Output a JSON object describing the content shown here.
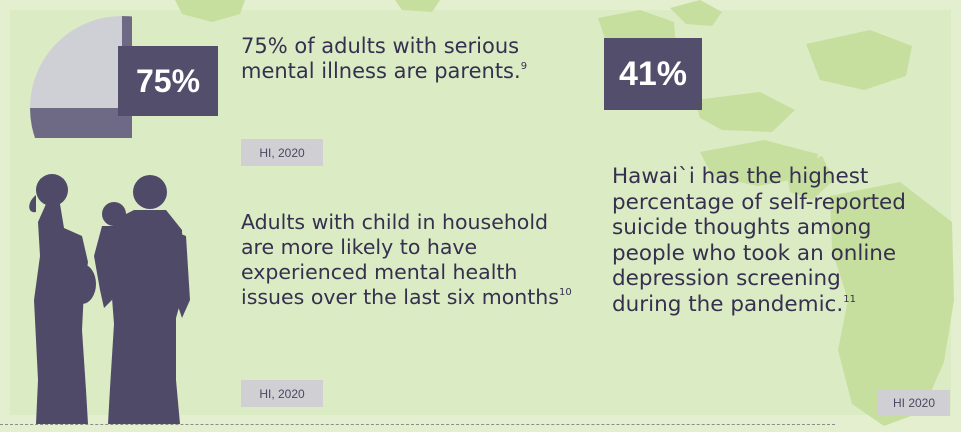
{
  "stats": {
    "parents": {
      "value": "75%",
      "fraction": 0.75,
      "text": "75% of adults with serious mental illness are parents.",
      "footnote": "9",
      "source": "HI, 2020"
    },
    "household": {
      "text": "Adults with child in household are more likely to have experienced mental health issues over the last six months",
      "footnote": "10",
      "source": "HI, 2020"
    },
    "suicide": {
      "value": "41%",
      "text": "Hawai`i has the highest percentage of self-reported suicide thoughts among people who took an online depression screening during the pandemic.",
      "footnote": "11",
      "source": "HI 2020"
    }
  },
  "colors": {
    "background": "#dbebc4",
    "island": "#c6df9f",
    "accent": "#534e6c",
    "silhouette": "#4f4a68",
    "pie_light": "#cfcfd6",
    "text": "#36304f"
  },
  "icons": [
    "pie-chart-icon",
    "family-silhouette-icon",
    "hawaii-islands-map"
  ]
}
